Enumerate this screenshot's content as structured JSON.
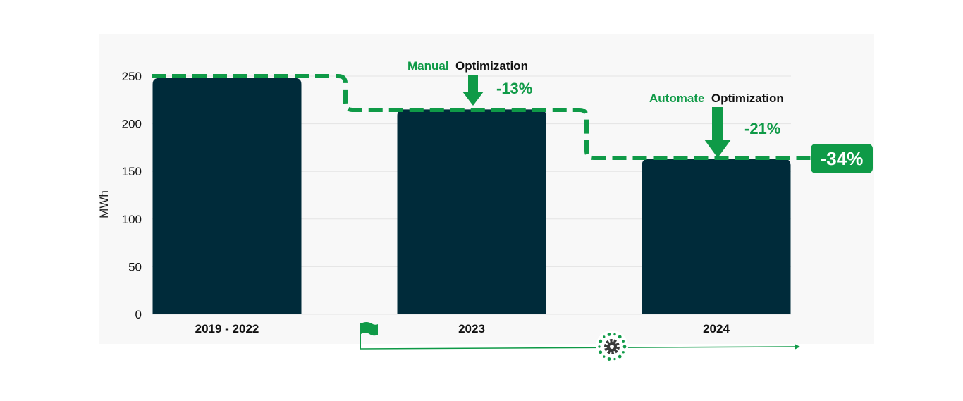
{
  "colors": {
    "bar": "#002b3a",
    "accent": "#0f9a47",
    "grid": "#e4e4e4",
    "panel": "#f8f8f8"
  },
  "chart_data": {
    "type": "bar",
    "categories": [
      "2019 - 2022",
      "2023",
      "2024"
    ],
    "values": [
      248,
      215,
      163
    ],
    "ylabel": "MWh",
    "ylim": [
      0,
      250
    ],
    "yticks": [
      0,
      50,
      100,
      150,
      200,
      250
    ],
    "grid": true,
    "annotations": {
      "manual": {
        "green": "Manual",
        "dark": "Optimization",
        "pct": "-13%"
      },
      "automate": {
        "green": "Automate",
        "dark": "Optimization",
        "pct": "-21%"
      },
      "total": "-34%"
    },
    "timeline": {
      "start_icon": "flag-icon",
      "mid_icon": "gear-icon",
      "end_icon": "arrow-right-icon"
    }
  }
}
